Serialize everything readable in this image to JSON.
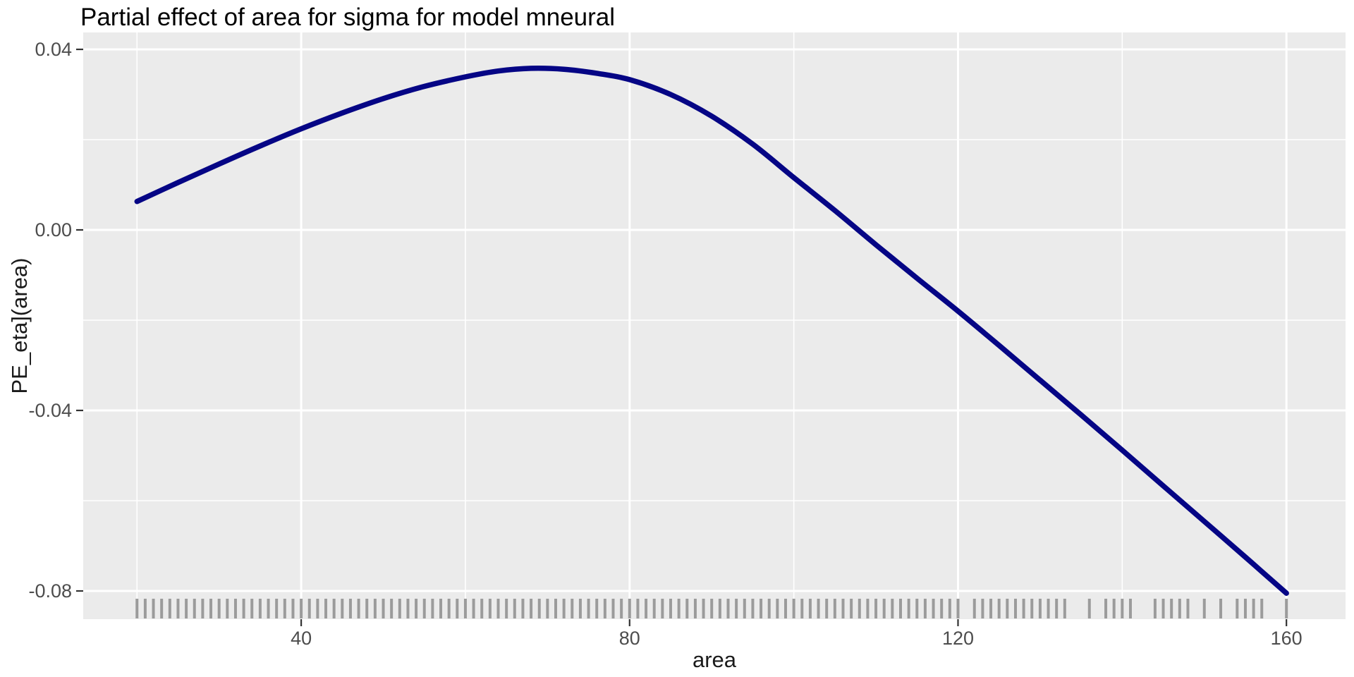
{
  "chart_data": {
    "type": "line",
    "title": "Partial effect of area for sigma for model mneural",
    "xlabel": "area",
    "ylabel": "PE_eta](area)",
    "xlim": [
      13.45,
      167.2
    ],
    "ylim": [
      -0.08625,
      0.04375
    ],
    "x_major_ticks": [
      40,
      80,
      120,
      160
    ],
    "x_tick_labels": [
      "40",
      "80",
      "120",
      "160"
    ],
    "x_minor_ticks": [
      20,
      60,
      100,
      140
    ],
    "y_major_ticks": [
      0.04,
      0.0,
      -0.04,
      -0.08
    ],
    "y_tick_labels": [
      "0.04",
      "0.00",
      "-0.04",
      "-0.08"
    ],
    "y_minor_ticks": [
      0.02,
      -0.02,
      -0.06
    ],
    "grid": true,
    "legend_position": "none",
    "colors": {
      "panel_bg": "#EBEBEB",
      "grid": "#FFFFFF",
      "line": "#050585",
      "rug": "#9B9B9B",
      "axis_tick": "#333333",
      "tick_label": "#4D4D4D",
      "axis_title": "#1A1A1A",
      "title": "#000000"
    },
    "line_width": 7.5,
    "series": [
      {
        "points": [
          [
            20,
            0.0063
          ],
          [
            25,
            0.0105
          ],
          [
            30,
            0.0146
          ],
          [
            35,
            0.0186
          ],
          [
            40,
            0.0224
          ],
          [
            45,
            0.0259
          ],
          [
            50,
            0.0291
          ],
          [
            55,
            0.0318
          ],
          [
            60,
            0.0339
          ],
          [
            64,
            0.0352
          ],
          [
            68,
            0.0358
          ],
          [
            72,
            0.0356
          ],
          [
            76,
            0.0347
          ],
          [
            80,
            0.0333
          ],
          [
            85,
            0.03
          ],
          [
            90,
            0.0252
          ],
          [
            95,
            0.019
          ],
          [
            100,
            0.0116
          ],
          [
            105,
            0.0043
          ],
          [
            110,
            -0.0033
          ],
          [
            115,
            -0.0107
          ],
          [
            120,
            -0.018
          ],
          [
            125,
            -0.0256
          ],
          [
            130,
            -0.0333
          ],
          [
            135,
            -0.041
          ],
          [
            140,
            -0.0488
          ],
          [
            145,
            -0.0567
          ],
          [
            150,
            -0.0646
          ],
          [
            155,
            -0.0725
          ],
          [
            160,
            -0.0805
          ]
        ]
      }
    ],
    "rug_x": [
      20,
      21,
      22,
      23,
      24,
      25,
      26,
      27,
      28,
      29,
      30,
      31,
      32,
      33,
      34,
      35,
      36,
      37,
      38,
      39,
      40,
      41,
      42,
      43,
      44,
      45,
      46,
      47,
      48,
      49,
      50,
      51,
      52,
      53,
      54,
      55,
      56,
      57,
      58,
      59,
      60,
      61,
      62,
      63,
      64,
      65,
      66,
      67,
      68,
      69,
      70,
      71,
      72,
      73,
      74,
      75,
      76,
      77,
      78,
      79,
      80,
      81,
      82,
      83,
      84,
      85,
      86,
      87,
      88,
      89,
      90,
      91,
      92,
      93,
      94,
      95,
      96,
      97,
      98,
      99,
      100,
      101,
      102,
      103,
      104,
      105,
      106,
      107,
      108,
      109,
      110,
      111,
      112,
      113,
      114,
      115,
      116,
      117,
      118,
      119,
      120,
      122,
      123,
      124,
      125,
      126,
      127,
      128,
      129,
      130,
      131,
      132,
      133,
      136,
      138,
      139,
      140,
      141,
      144,
      145,
      146,
      147,
      148,
      150,
      152,
      154,
      155,
      156,
      157,
      160
    ]
  }
}
